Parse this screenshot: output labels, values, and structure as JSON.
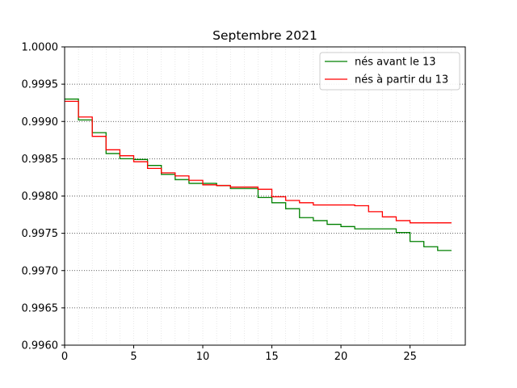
{
  "chart_data": {
    "type": "line",
    "step": "post",
    "title": "Septembre 2021",
    "xlabel": "",
    "ylabel": "",
    "xlim": [
      0,
      29
    ],
    "ylim": [
      0.996,
      1.0
    ],
    "xticks": [
      0,
      5,
      10,
      15,
      20,
      25
    ],
    "yticks": [
      0.996,
      0.9965,
      0.997,
      0.9975,
      0.998,
      0.9985,
      0.999,
      0.9995,
      1.0
    ],
    "ytick_labels": [
      "0.9960",
      "0.9965",
      "0.9970",
      "0.9975",
      "0.9980",
      "0.9985",
      "0.9990",
      "0.9995",
      "1.0000"
    ],
    "grid": {
      "y": "dotted-dark",
      "x": "dotted-light"
    },
    "legend_position": "top-right",
    "series": [
      {
        "name": "nés avant le 13",
        "color": "#008000",
        "x": [
          0,
          1,
          2,
          3,
          4,
          5,
          6,
          7,
          8,
          9,
          10,
          11,
          12,
          13,
          14,
          15,
          16,
          17,
          18,
          19,
          20,
          21,
          22,
          23,
          24,
          25,
          26,
          27,
          28
        ],
        "y": [
          0.9993,
          0.99902,
          0.99885,
          0.99857,
          0.9985,
          0.99849,
          0.99841,
          0.99829,
          0.99822,
          0.99817,
          0.99817,
          0.99814,
          0.9981,
          0.9981,
          0.99798,
          0.99791,
          0.99783,
          0.99771,
          0.99767,
          0.99762,
          0.99759,
          0.99756,
          0.99756,
          0.99756,
          0.99751,
          0.99739,
          0.99732,
          0.99727,
          0.99727
        ]
      },
      {
        "name": "nés à partir du 13",
        "color": "#ff0000",
        "x": [
          0,
          1,
          2,
          3,
          4,
          5,
          6,
          7,
          8,
          9,
          10,
          11,
          12,
          13,
          14,
          15,
          16,
          17,
          18,
          19,
          20,
          21,
          22,
          23,
          24,
          25,
          26,
          27,
          28
        ],
        "y": [
          0.99927,
          0.99906,
          0.9988,
          0.99862,
          0.99854,
          0.99846,
          0.99837,
          0.99831,
          0.99827,
          0.99821,
          0.99815,
          0.99814,
          0.99812,
          0.99812,
          0.99809,
          0.99799,
          0.99794,
          0.99791,
          0.99788,
          0.99788,
          0.99788,
          0.99787,
          0.99779,
          0.99772,
          0.99767,
          0.99764,
          0.99764,
          0.99764,
          0.99764
        ]
      }
    ]
  }
}
